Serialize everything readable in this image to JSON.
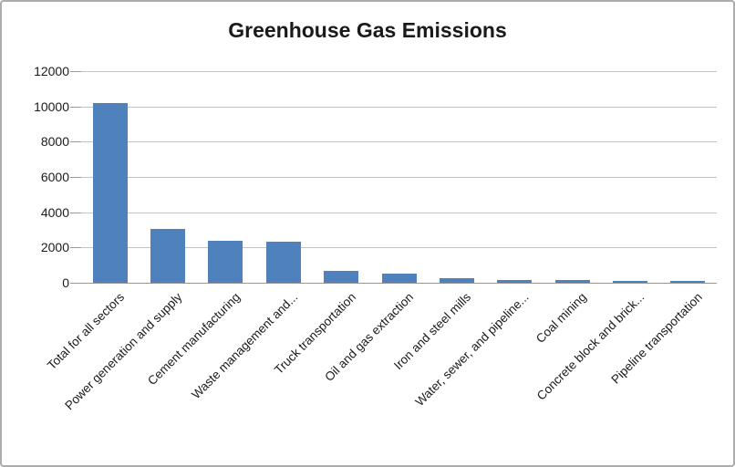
{
  "chart_data": {
    "type": "bar",
    "title": "Greenhouse Gas Emissions",
    "xlabel": "",
    "ylabel": "",
    "categories": [
      "Total for all sectors",
      "Power generation and supply",
      "Cement manufacturing",
      "Waste management and...",
      "Truck transportation",
      "Oil and gas extraction",
      "Iron and steel mills",
      "Water, sewer, and pipeline...",
      "Coal mining",
      "Concrete block and brick...",
      "Pipeline transportation"
    ],
    "values": [
      10200,
      3050,
      2400,
      2350,
      650,
      500,
      250,
      150,
      180,
      80,
      90
    ],
    "ylim": [
      0,
      12000
    ],
    "ytick_step": 2000,
    "ytick_labels": [
      "0",
      "2000",
      "4000",
      "6000",
      "8000",
      "10000",
      "12000"
    ],
    "grid": true,
    "legend": false,
    "bar_color": "#4F81BD",
    "gridline_color": "#C3C3C3",
    "axis_color": "#999691",
    "title_color": "#1A1A1A",
    "label_color": "#1A1A1A",
    "background_color": "#FFFFFF",
    "frame_border_color": "#ACACAC"
  }
}
